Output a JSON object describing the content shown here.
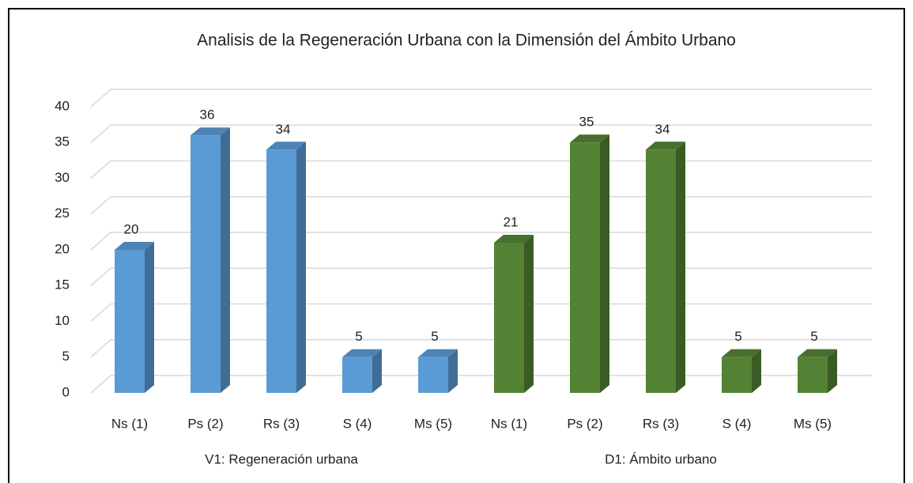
{
  "chart_data": {
    "type": "bar3d",
    "title": "Analisis de la Regeneración Urbana con la Dimensión del Ámbito Urbano",
    "ylim": [
      0,
      40
    ],
    "yticks": [
      0,
      5,
      10,
      15,
      20,
      25,
      30,
      35,
      40
    ],
    "grid": true,
    "groups": [
      {
        "name": "V1: Regeneración urbana",
        "color": "#5b9bd5",
        "categories": [
          "Ns (1)",
          "Ps (2)",
          "Rs (3)",
          "S (4)",
          "Ms (5)"
        ],
        "values": [
          20,
          36,
          34,
          5,
          5
        ]
      },
      {
        "name": "D1: Ámbito urbano",
        "color": "#548235",
        "categories": [
          "Ns (1)",
          "Ps (2)",
          "Rs (3)",
          "S (4)",
          "Ms (5)"
        ],
        "values": [
          21,
          35,
          34,
          5,
          5
        ]
      }
    ]
  }
}
